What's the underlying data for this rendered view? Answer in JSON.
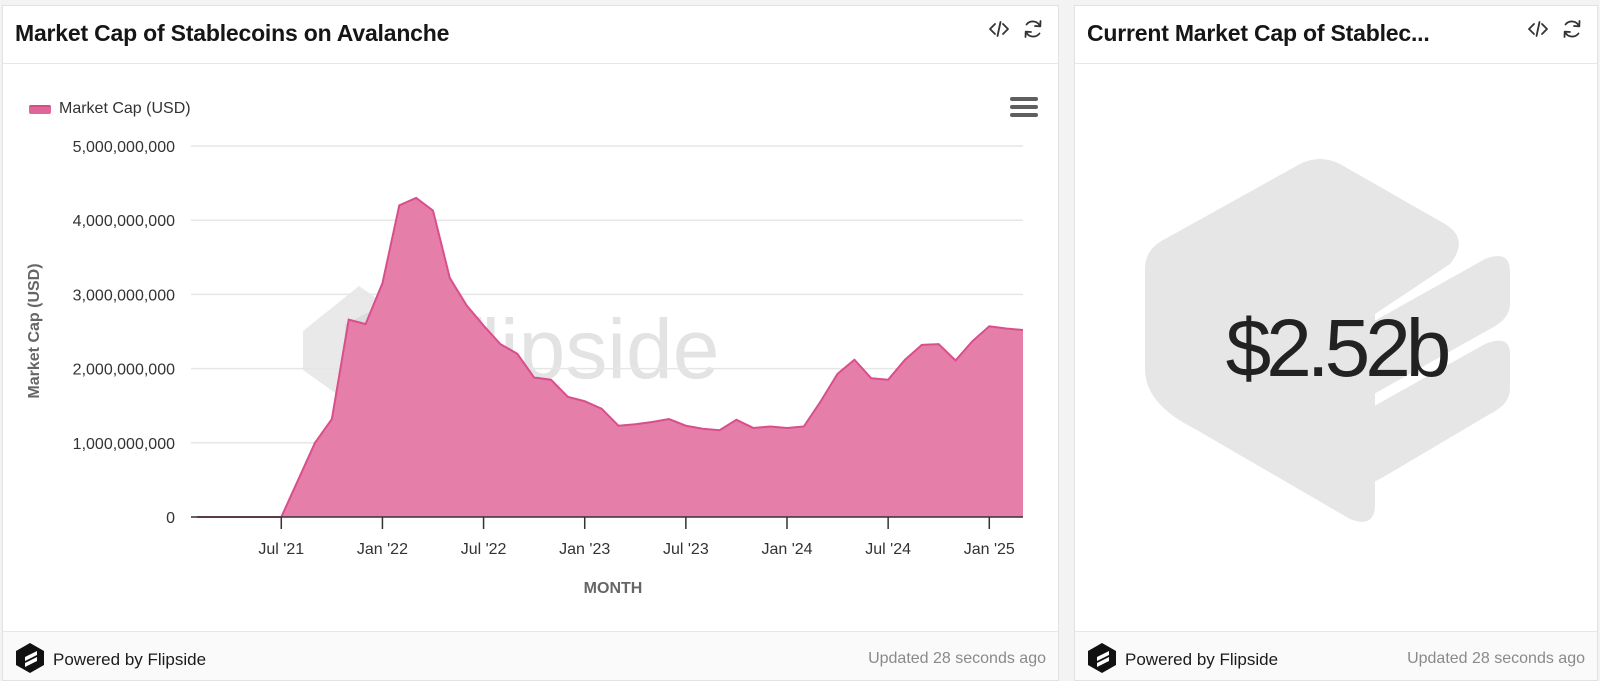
{
  "left_panel": {
    "title": "Market Cap of Stablecoins on Avalanche",
    "legend_label": "Market Cap (USD)",
    "watermark_text": "flipside",
    "footer": {
      "powered_by": "Powered by Flipside",
      "updated": "Updated 28 seconds ago"
    }
  },
  "right_panel": {
    "title": "Current Market Cap of Stablec...",
    "value": "$2.52b",
    "footer": {
      "powered_by": "Powered by Flipside",
      "updated": "Updated 28 seconds ago"
    }
  },
  "icons": {
    "embed": "code-icon",
    "refresh": "refresh-icon",
    "menu": "hamburger-menu-icon",
    "brand": "flipside-logo-icon"
  },
  "colors": {
    "area_fill": "#e57ea8",
    "area_stroke": "#d94f8c",
    "grid": "#e6e6e6",
    "watermark": "#e8e8e8"
  },
  "chart_data": {
    "type": "area",
    "title": "Market Cap of Stablecoins on Avalanche",
    "xlabel": "MONTH",
    "ylabel": "Market Cap (USD)",
    "ylim": [
      0,
      5000000000
    ],
    "y_ticks": [
      0,
      1000000000,
      2000000000,
      3000000000,
      4000000000,
      5000000000
    ],
    "y_tick_labels": [
      "0",
      "1,000,000,000",
      "2,000,000,000",
      "3,000,000,000",
      "4,000,000,000",
      "5,000,000,000"
    ],
    "x_tick_labels": [
      "Jul '21",
      "Jan '22",
      "Jul '22",
      "Jan '23",
      "Jul '23",
      "Jan '24",
      "Jul '24",
      "Jan '25"
    ],
    "x_tick_index": [
      5,
      11,
      17,
      23,
      29,
      35,
      41,
      47
    ],
    "x_start_index": 0,
    "x_end_index": 49,
    "legend": [
      "Market Cap (USD)"
    ],
    "series": [
      {
        "name": "Market Cap (USD)",
        "x": [
          "2021-02",
          "2021-03",
          "2021-04",
          "2021-05",
          "2021-06",
          "2021-07",
          "2021-08",
          "2021-09",
          "2021-10",
          "2021-11",
          "2021-12",
          "2022-01",
          "2022-02",
          "2022-03",
          "2022-04",
          "2022-05",
          "2022-06",
          "2022-07",
          "2022-08",
          "2022-09",
          "2022-10",
          "2022-11",
          "2022-12",
          "2023-01",
          "2023-02",
          "2023-03",
          "2023-04",
          "2023-05",
          "2023-06",
          "2023-07",
          "2023-08",
          "2023-09",
          "2023-10",
          "2023-11",
          "2023-12",
          "2024-01",
          "2024-02",
          "2024-03",
          "2024-04",
          "2024-05",
          "2024-06",
          "2024-07",
          "2024-08",
          "2024-09",
          "2024-10",
          "2024-11",
          "2024-12",
          "2025-01",
          "2025-02",
          "2025-03"
        ],
        "values": [
          0,
          0,
          0,
          0,
          0,
          0,
          500000000,
          1000000000,
          1320000000,
          2660000000,
          2600000000,
          3150000000,
          4200000000,
          4300000000,
          4130000000,
          3220000000,
          2850000000,
          2580000000,
          2330000000,
          2200000000,
          1880000000,
          1850000000,
          1620000000,
          1560000000,
          1460000000,
          1230000000,
          1250000000,
          1280000000,
          1320000000,
          1230000000,
          1190000000,
          1170000000,
          1310000000,
          1200000000,
          1220000000,
          1200000000,
          1220000000,
          1560000000,
          1930000000,
          2120000000,
          1870000000,
          1850000000,
          2120000000,
          2320000000,
          2330000000,
          2110000000,
          2370000000,
          2570000000,
          2540000000,
          2520000000
        ]
      }
    ]
  }
}
